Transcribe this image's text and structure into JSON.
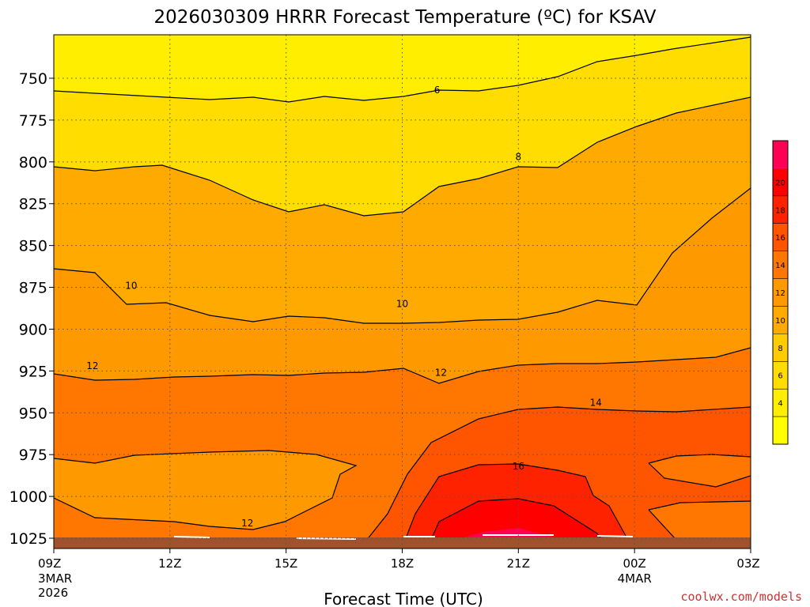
{
  "chart_data": {
    "type": "heatmap",
    "title": "2026030309 HRRR Forecast Temperature (ºC) for KSAV",
    "xlabel": "Forecast Time (UTC)",
    "ylabel": "",
    "x_hours": [
      9,
      27
    ],
    "x_ticks": [
      {
        "hour": 9,
        "label": "09Z",
        "sub1": "3MAR",
        "sub2": "2026"
      },
      {
        "hour": 12,
        "label": "12Z",
        "sub1": "",
        "sub2": ""
      },
      {
        "hour": 15,
        "label": "15Z",
        "sub1": "",
        "sub2": ""
      },
      {
        "hour": 18,
        "label": "18Z",
        "sub1": "",
        "sub2": ""
      },
      {
        "hour": 21,
        "label": "21Z",
        "sub1": "",
        "sub2": ""
      },
      {
        "hour": 24,
        "label": "00Z",
        "sub1": "4MAR",
        "sub2": ""
      },
      {
        "hour": 27,
        "label": "03Z",
        "sub1": "",
        "sub2": ""
      }
    ],
    "y_axis": {
      "scale": "pressure",
      "range_hpa": [
        1032,
        728
      ],
      "reversed": true,
      "ticks": [
        750,
        775,
        800,
        825,
        850,
        875,
        900,
        925,
        950,
        975,
        1000,
        1025
      ]
    },
    "grid": true,
    "colorbar": {
      "levels": [
        2,
        4,
        6,
        8,
        10,
        12,
        14,
        16,
        18,
        20,
        22
      ],
      "tick_labels": [
        "4",
        "6",
        "8",
        "10",
        "12",
        "14",
        "16",
        "18",
        "20"
      ],
      "colors": [
        "#ffff00",
        "#ffee00",
        "#ffdd00",
        "#ffcc00",
        "#ffaa00",
        "#ff9900",
        "#ff7700",
        "#ff5500",
        "#ff2200",
        "#ff0000",
        "#ff0055"
      ],
      "position": "right"
    },
    "contour_labels": [
      {
        "value": "6",
        "hour": 18.9,
        "hpa": 757
      },
      {
        "value": "8",
        "hour": 21.0,
        "hpa": 797
      },
      {
        "value": "10",
        "hour": 11.0,
        "hpa": 874
      },
      {
        "value": "10",
        "hour": 18.0,
        "hpa": 885
      },
      {
        "value": "12",
        "hour": 10.0,
        "hpa": 922
      },
      {
        "value": "12",
        "hour": 19.0,
        "hpa": 926
      },
      {
        "value": "12",
        "hour": 14.0,
        "hpa": 1016
      },
      {
        "value": "14",
        "hour": 23.0,
        "hpa": 944
      },
      {
        "value": "16",
        "hour": 21.0,
        "hpa": 982
      }
    ],
    "surface_color": "#a0522d"
  },
  "credit": "coolwx.com/models"
}
